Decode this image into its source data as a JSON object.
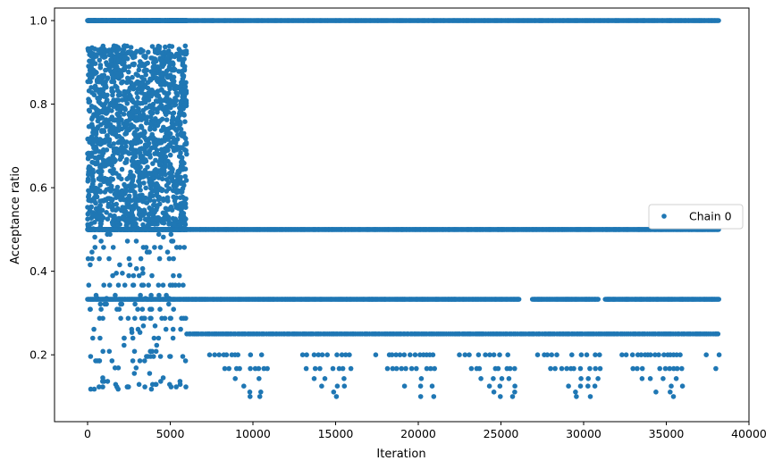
{
  "chart_data": {
    "type": "scatter",
    "xlabel": "Iteration",
    "ylabel": "Acceptance ratio",
    "xlim": [
      -2000,
      40000
    ],
    "ylim": [
      0.04,
      1.03
    ],
    "x_ticks": [
      "0",
      "5000",
      "10000",
      "15000",
      "20000",
      "25000",
      "30000",
      "35000",
      "40000"
    ],
    "x_tick_values": [
      0,
      5000,
      10000,
      15000,
      20000,
      25000,
      30000,
      35000,
      40000
    ],
    "y_ticks": [
      "0.2",
      "0.4",
      "0.6",
      "0.8",
      "1.0"
    ],
    "y_tick_values": [
      0.2,
      0.4,
      0.6,
      0.8,
      1.0
    ],
    "grid": false,
    "legend_position": "center-right",
    "color": "#1f77b4",
    "series": [
      {
        "name": "Chain 0",
        "marker": "circle",
        "bands": [
          {
            "y": 1.0,
            "x_range": [
              0,
              38200
            ],
            "density": "solid"
          },
          {
            "y": 0.5,
            "x_range": [
              0,
              38200
            ],
            "density": "solid"
          },
          {
            "y": 0.333,
            "x_range": [
              0,
              38200
            ],
            "density": "solid",
            "gaps": [
              [
                26100,
                26900
              ],
              [
                30900,
                31300
              ]
            ]
          },
          {
            "y": 0.25,
            "x_range": [
              0,
              38200
            ],
            "density": "dense"
          },
          {
            "y": 0.2,
            "x_range": [
              0,
              38200
            ],
            "density": "medium"
          },
          {
            "y": 0.167,
            "x_range": [
              0,
              38200
            ],
            "density": "medium"
          },
          {
            "y": 0.143,
            "x_range": [
              0,
              38200
            ],
            "density": "sparse"
          },
          {
            "y": 0.125,
            "x_range": [
              0,
              38200
            ],
            "density": "sparse"
          },
          {
            "y": 0.111,
            "x_range": [
              0,
              38200
            ],
            "density": "sparse"
          },
          {
            "y": 0.1,
            "x_range": [
              0,
              38200
            ],
            "density": "sparse"
          }
        ],
        "burn_in_x_range": [
          0,
          6000
        ],
        "burn_in_y_range": [
          0.07,
          0.94
        ]
      }
    ]
  }
}
